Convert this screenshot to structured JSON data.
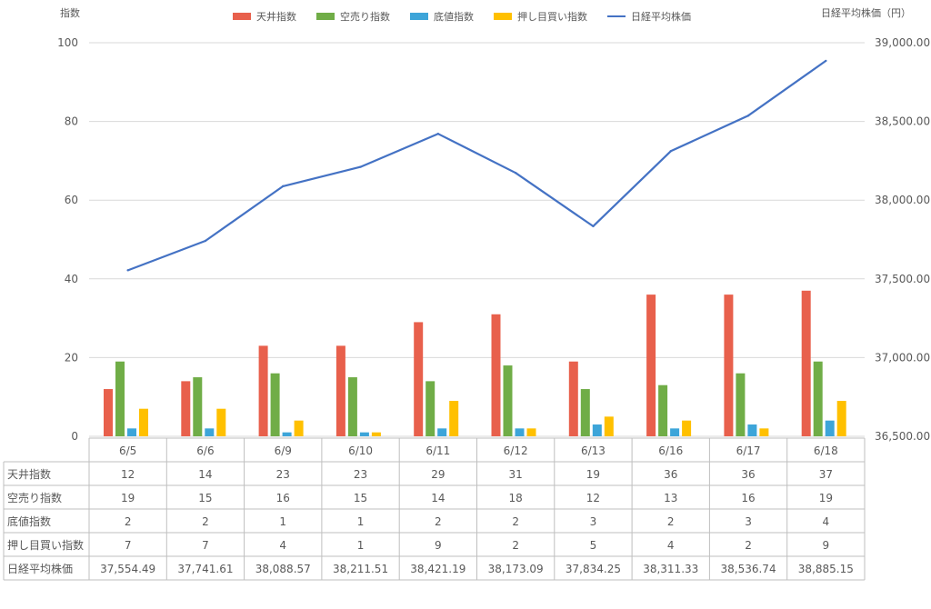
{
  "chart_data": {
    "type": "bar",
    "categories": [
      "6/5",
      "6/6",
      "6/9",
      "6/10",
      "6/11",
      "6/12",
      "6/13",
      "6/16",
      "6/17",
      "6/18"
    ],
    "y_axis_title": "指数",
    "y2_axis_title": "日経平均株価（円）",
    "ylim": [
      0,
      100
    ],
    "y_ticks": [
      0,
      20,
      40,
      60,
      80,
      100
    ],
    "y2lim": [
      36500,
      39000
    ],
    "y2_ticks": [
      "36,500.00",
      "37,000.00",
      "37,500.00",
      "38,000.00",
      "38,500.00",
      "39,000.00"
    ],
    "legend_position": "top",
    "grid": true,
    "series": [
      {
        "name": "天井指数",
        "type": "bar",
        "axis": "left",
        "color": "#E8604C",
        "values": [
          12,
          14,
          23,
          23,
          29,
          31,
          19,
          36,
          36,
          37
        ]
      },
      {
        "name": "空売り指数",
        "type": "bar",
        "axis": "left",
        "color": "#70AD47",
        "values": [
          19,
          15,
          16,
          15,
          14,
          18,
          12,
          13,
          16,
          19
        ]
      },
      {
        "name": "底値指数",
        "type": "bar",
        "axis": "left",
        "color": "#3DA5D9",
        "values": [
          2,
          2,
          1,
          1,
          2,
          2,
          3,
          2,
          3,
          4
        ]
      },
      {
        "name": "押し目買い指数",
        "type": "bar",
        "axis": "left",
        "color": "#FFC000",
        "values": [
          7,
          7,
          4,
          1,
          9,
          2,
          5,
          4,
          2,
          9
        ]
      },
      {
        "name": "日経平均株価",
        "type": "line",
        "axis": "right",
        "color": "#4472C4",
        "values": [
          37554.49,
          37741.61,
          38088.57,
          38211.51,
          38421.19,
          38173.09,
          37834.25,
          38311.33,
          38536.74,
          38885.15
        ]
      }
    ],
    "table": {
      "rows": [
        {
          "label": "天井指数",
          "cells": [
            "12",
            "14",
            "23",
            "23",
            "29",
            "31",
            "19",
            "36",
            "36",
            "37"
          ]
        },
        {
          "label": "空売り指数",
          "cells": [
            "19",
            "15",
            "16",
            "15",
            "14",
            "18",
            "12",
            "13",
            "16",
            "19"
          ]
        },
        {
          "label": "底値指数",
          "cells": [
            "2",
            "2",
            "1",
            "1",
            "2",
            "2",
            "3",
            "2",
            "3",
            "4"
          ]
        },
        {
          "label": "押し目買い指数",
          "cells": [
            "7",
            "7",
            "4",
            "1",
            "9",
            "2",
            "5",
            "4",
            "2",
            "9"
          ]
        },
        {
          "label": "日経平均株価",
          "cells": [
            "37,554.49",
            "37,741.61",
            "38,088.57",
            "38,211.51",
            "38,421.19",
            "38,173.09",
            "37,834.25",
            "38,311.33",
            "38,536.74",
            "38,885.15"
          ]
        }
      ]
    }
  }
}
